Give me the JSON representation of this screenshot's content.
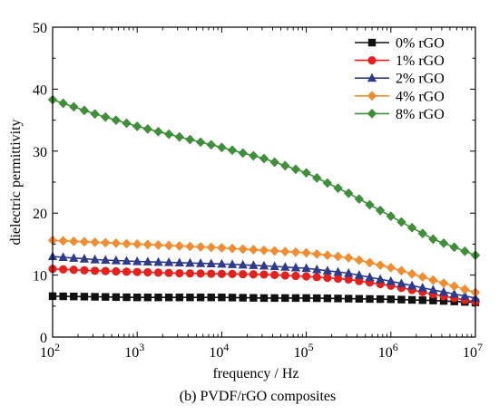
{
  "chart_data": {
    "type": "line",
    "caption": "(b) PVDF/rGO composites",
    "xlabel": "frequency / Hz",
    "ylabel": "dielectric permittivity",
    "x_scale": "log",
    "xlim": [
      100,
      10000000
    ],
    "ylim": [
      0,
      50
    ],
    "grid": false,
    "legend_position": "top-right",
    "x_ticks": [
      {
        "value": 100,
        "base": "10",
        "exp": "2"
      },
      {
        "value": 1000,
        "base": "10",
        "exp": "3"
      },
      {
        "value": 10000,
        "base": "10",
        "exp": "4"
      },
      {
        "value": 100000,
        "base": "10",
        "exp": "5"
      },
      {
        "value": 1000000,
        "base": "10",
        "exp": "6"
      },
      {
        "value": 10000000,
        "base": "10",
        "exp": "7"
      }
    ],
    "y_ticks": [
      "0",
      "10",
      "20",
      "30",
      "40",
      "50"
    ],
    "series": [
      {
        "name": "0% rGO",
        "color": "#111111",
        "marker": "square",
        "x": [
          100,
          316,
          1000,
          3162,
          10000,
          31623,
          100000,
          316228,
          1000000,
          3162278,
          10000000
        ],
        "y": [
          6.6,
          6.5,
          6.4,
          6.4,
          6.4,
          6.3,
          6.3,
          6.2,
          6.1,
          5.9,
          5.6
        ]
      },
      {
        "name": "1% rGO",
        "color": "#e8201c",
        "marker": "circle",
        "x": [
          100,
          316,
          1000,
          3162,
          10000,
          31623,
          100000,
          316228,
          1000000,
          3162278,
          10000000
        ],
        "y": [
          11.0,
          10.7,
          10.5,
          10.3,
          10.2,
          10.1,
          9.8,
          9.3,
          8.3,
          6.9,
          5.7
        ]
      },
      {
        "name": "2% rGO",
        "color": "#2e3a8c",
        "marker": "triangle",
        "x": [
          100,
          316,
          1000,
          3162,
          10000,
          31623,
          100000,
          316228,
          1000000,
          3162278,
          10000000
        ],
        "y": [
          13.0,
          12.5,
          12.2,
          12.0,
          11.8,
          11.5,
          11.1,
          10.3,
          9.0,
          7.6,
          6.3
        ]
      },
      {
        "name": "4% rGO",
        "color": "#f28c2e",
        "marker": "diamond",
        "x": [
          100,
          316,
          1000,
          3162,
          10000,
          31623,
          100000,
          316228,
          1000000,
          3162278,
          10000000
        ],
        "y": [
          15.6,
          15.3,
          15.0,
          14.7,
          14.4,
          14.0,
          13.6,
          12.8,
          11.2,
          9.2,
          7.2
        ]
      },
      {
        "name": "8% rGO",
        "color": "#3e8e3a",
        "marker": "diamond",
        "x": [
          100,
          316,
          1000,
          3162,
          10000,
          31623,
          100000,
          316228,
          1000000,
          3162278,
          10000000
        ],
        "y": [
          38.3,
          36.0,
          34.0,
          32.3,
          30.6,
          28.8,
          26.5,
          23.2,
          19.5,
          15.8,
          13.2
        ]
      }
    ]
  }
}
